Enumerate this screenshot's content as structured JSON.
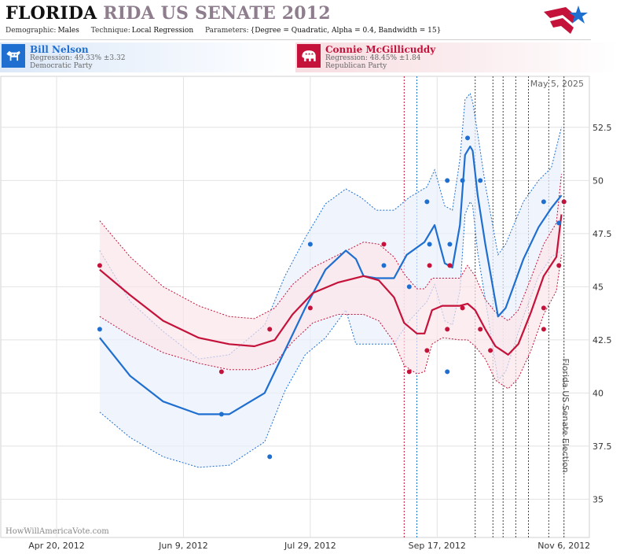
{
  "header": {
    "title_main": "FLORIDA",
    "title_rest": "RIDA US SENATE 2012",
    "demographic_label": "Demographic:",
    "demographic_value": "Males",
    "technique_label": "Technique:",
    "technique_value": "Local Regression",
    "parameters_label": "Parameters:",
    "parameters_value": "{Degree = Quadratic, Alpha = 0.4, Bandwidth = 15}"
  },
  "candidates": {
    "dem": {
      "name": "Bill Nelson",
      "regression": "Regression: 49.33% ±3.32",
      "party": "Democratic Party",
      "icon": "donkey-icon",
      "color": "#1f6fd0"
    },
    "rep": {
      "name": "Connie McGillicuddy",
      "regression": "Regression: 48.45% ±1.84",
      "party": "Republican Party",
      "icon": "elephant-icon",
      "color": "#c4123a"
    }
  },
  "colors": {
    "dem": "#1f6fd0",
    "rep": "#c4123a",
    "dem_band": "#e9f0fb",
    "rep_band": "#fbe6ea"
  },
  "chart_data": {
    "type": "scatter",
    "date_label": "May 5, 2025",
    "watermark": "HowWillAmericaVote.com",
    "event_label": "Florida US Senate Election",
    "event_date": "2012-11-06",
    "x_ticks": [
      "2012-04-20",
      "2012-06-09",
      "2012-07-29",
      "2012-09-17",
      "2012-11-06"
    ],
    "x_tick_labels": [
      "Apr 20, 2012",
      "Jun 9, 2012",
      "Jul 29, 2012",
      "Sep 17, 2012",
      "Nov 6, 2012"
    ],
    "x_range": [
      "2012-03-29",
      "2012-11-16"
    ],
    "y_ticks": [
      35,
      37.5,
      40,
      42.5,
      45,
      47.5,
      50,
      52.5
    ],
    "y_tick_labels": [
      "35",
      "37.5",
      "40",
      "42.5",
      "45",
      "47.5",
      "50",
      "52.5"
    ],
    "ylim": [
      33.2,
      54.9
    ],
    "grid": true,
    "markers": [
      {
        "date": "2012-09-04",
        "color": "rep"
      },
      {
        "date": "2012-09-09",
        "color": "dem"
      },
      {
        "date": "2012-10-02",
        "color": "gray"
      },
      {
        "date": "2012-10-09",
        "color": "gray"
      },
      {
        "date": "2012-10-13",
        "color": "gray"
      },
      {
        "date": "2012-10-18",
        "color": "gray"
      },
      {
        "date": "2012-10-23",
        "color": "gray"
      },
      {
        "date": "2012-10-31",
        "color": "gray"
      }
    ],
    "series": [
      {
        "name": "Bill Nelson",
        "color": "dem",
        "points": [
          [
            "2012-05-07",
            43.0
          ],
          [
            "2012-06-24",
            39.0
          ],
          [
            "2012-07-13",
            37.0
          ],
          [
            "2012-07-29",
            47.0
          ],
          [
            "2012-08-27",
            46.0
          ],
          [
            "2012-09-06",
            45.0
          ],
          [
            "2012-09-13",
            49.0
          ],
          [
            "2012-09-14",
            47.0
          ],
          [
            "2012-09-21",
            50.0
          ],
          [
            "2012-09-21",
            41.0
          ],
          [
            "2012-09-22",
            47.0
          ],
          [
            "2012-09-27",
            50.0
          ],
          [
            "2012-09-29",
            52.0
          ],
          [
            "2012-10-04",
            50.0
          ],
          [
            "2012-10-29",
            49.0
          ],
          [
            "2012-11-04",
            48.0
          ],
          [
            "2012-11-06",
            49.0
          ]
        ],
        "fit": [
          [
            "2012-05-07",
            42.6
          ],
          [
            "2012-05-19",
            40.8
          ],
          [
            "2012-06-01",
            39.6
          ],
          [
            "2012-06-15",
            39.0
          ],
          [
            "2012-06-27",
            39.0
          ],
          [
            "2012-07-11",
            40.0
          ],
          [
            "2012-07-19",
            42.0
          ],
          [
            "2012-07-27",
            44.0
          ],
          [
            "2012-08-04",
            45.8
          ],
          [
            "2012-08-12",
            46.7
          ],
          [
            "2012-08-16",
            46.3
          ],
          [
            "2012-08-19",
            45.5
          ],
          [
            "2012-08-24",
            45.4
          ],
          [
            "2012-08-31",
            45.4
          ],
          [
            "2012-09-05",
            46.5
          ],
          [
            "2012-09-12",
            47.1
          ],
          [
            "2012-09-16",
            47.9
          ],
          [
            "2012-09-18",
            47.0
          ],
          [
            "2012-09-20",
            46.1
          ],
          [
            "2012-09-23",
            45.9
          ],
          [
            "2012-09-26",
            47.9
          ],
          [
            "2012-09-28",
            51.2
          ],
          [
            "2012-09-30",
            51.6
          ],
          [
            "2012-10-01",
            51.4
          ],
          [
            "2012-10-03",
            49.3
          ],
          [
            "2012-10-06",
            47.0
          ],
          [
            "2012-10-11",
            43.6
          ],
          [
            "2012-10-14",
            44.0
          ],
          [
            "2012-10-21",
            46.3
          ],
          [
            "2012-10-27",
            47.8
          ],
          [
            "2012-11-01",
            48.7
          ],
          [
            "2012-11-05",
            49.3
          ]
        ],
        "upper": [
          [
            "2012-05-07",
            46.7
          ],
          [
            "2012-05-19",
            44.3
          ],
          [
            "2012-06-01",
            42.9
          ],
          [
            "2012-06-15",
            41.6
          ],
          [
            "2012-06-27",
            41.8
          ],
          [
            "2012-07-11",
            43.2
          ],
          [
            "2012-07-19",
            45.5
          ],
          [
            "2012-07-27",
            47.3
          ],
          [
            "2012-08-04",
            48.9
          ],
          [
            "2012-08-12",
            49.6
          ],
          [
            "2012-08-18",
            49.2
          ],
          [
            "2012-08-24",
            48.6
          ],
          [
            "2012-08-31",
            48.6
          ],
          [
            "2012-09-06",
            49.2
          ],
          [
            "2012-09-13",
            49.7
          ],
          [
            "2012-09-16",
            50.5
          ],
          [
            "2012-09-20",
            48.8
          ],
          [
            "2012-09-23",
            48.6
          ],
          [
            "2012-09-26",
            51.0
          ],
          [
            "2012-09-28",
            53.8
          ],
          [
            "2012-09-30",
            54.1
          ],
          [
            "2012-10-01",
            53.7
          ],
          [
            "2012-10-03",
            52.2
          ],
          [
            "2012-10-06",
            49.8
          ],
          [
            "2012-10-11",
            46.5
          ],
          [
            "2012-10-14",
            47.0
          ],
          [
            "2012-10-21",
            49.0
          ],
          [
            "2012-10-27",
            50.0
          ],
          [
            "2012-11-01",
            50.6
          ],
          [
            "2012-11-05",
            52.5
          ]
        ],
        "lower": [
          [
            "2012-05-07",
            39.1
          ],
          [
            "2012-05-19",
            37.9
          ],
          [
            "2012-06-01",
            37.0
          ],
          [
            "2012-06-15",
            36.5
          ],
          [
            "2012-06-27",
            36.6
          ],
          [
            "2012-07-11",
            37.7
          ],
          [
            "2012-07-19",
            40.1
          ],
          [
            "2012-07-27",
            41.8
          ],
          [
            "2012-08-04",
            42.6
          ],
          [
            "2012-08-12",
            43.9
          ],
          [
            "2012-08-16",
            42.3
          ],
          [
            "2012-08-24",
            42.3
          ],
          [
            "2012-08-31",
            42.3
          ],
          [
            "2012-09-06",
            43.4
          ],
          [
            "2012-09-13",
            44.3
          ],
          [
            "2012-09-16",
            45.1
          ],
          [
            "2012-09-20",
            43.4
          ],
          [
            "2012-09-23",
            43.2
          ],
          [
            "2012-09-26",
            44.8
          ],
          [
            "2012-09-28",
            48.4
          ],
          [
            "2012-09-30",
            49.0
          ],
          [
            "2012-10-01",
            48.8
          ],
          [
            "2012-10-03",
            46.6
          ],
          [
            "2012-10-06",
            44.4
          ],
          [
            "2012-10-11",
            40.6
          ],
          [
            "2012-10-14",
            41.0
          ],
          [
            "2012-10-21",
            43.6
          ],
          [
            "2012-10-27",
            45.5
          ],
          [
            "2012-11-01",
            46.4
          ],
          [
            "2012-11-05",
            46.7
          ]
        ]
      },
      {
        "name": "Connie McGillicuddy",
        "color": "rep",
        "points": [
          [
            "2012-05-07",
            46.0
          ],
          [
            "2012-06-24",
            41.0
          ],
          [
            "2012-07-13",
            43.0
          ],
          [
            "2012-07-29",
            44.0
          ],
          [
            "2012-08-27",
            47.0
          ],
          [
            "2012-09-06",
            41.0
          ],
          [
            "2012-09-13",
            42.0
          ],
          [
            "2012-09-14",
            46.0
          ],
          [
            "2012-09-21",
            43.0
          ],
          [
            "2012-09-22",
            46.0
          ],
          [
            "2012-09-27",
            44.0
          ],
          [
            "2012-10-04",
            43.0
          ],
          [
            "2012-10-08",
            42.0
          ],
          [
            "2012-10-29",
            44.0
          ],
          [
            "2012-10-29",
            43.0
          ],
          [
            "2012-11-04",
            46.0
          ],
          [
            "2012-11-06",
            49.0
          ]
        ],
        "fit": [
          [
            "2012-05-07",
            45.8
          ],
          [
            "2012-05-19",
            44.6
          ],
          [
            "2012-06-01",
            43.4
          ],
          [
            "2012-06-15",
            42.6
          ],
          [
            "2012-06-27",
            42.3
          ],
          [
            "2012-07-07",
            42.2
          ],
          [
            "2012-07-15",
            42.5
          ],
          [
            "2012-07-22",
            43.7
          ],
          [
            "2012-07-30",
            44.7
          ],
          [
            "2012-08-09",
            45.2
          ],
          [
            "2012-08-19",
            45.5
          ],
          [
            "2012-08-25",
            45.3
          ],
          [
            "2012-08-31",
            44.5
          ],
          [
            "2012-09-04",
            43.3
          ],
          [
            "2012-09-09",
            42.8
          ],
          [
            "2012-09-12",
            42.8
          ],
          [
            "2012-09-15",
            43.9
          ],
          [
            "2012-09-19",
            44.1
          ],
          [
            "2012-09-26",
            44.1
          ],
          [
            "2012-09-29",
            44.2
          ],
          [
            "2012-10-02",
            43.9
          ],
          [
            "2012-10-06",
            43.0
          ],
          [
            "2012-10-10",
            42.2
          ],
          [
            "2012-10-15",
            41.8
          ],
          [
            "2012-10-19",
            42.3
          ],
          [
            "2012-10-24",
            43.8
          ],
          [
            "2012-10-29",
            45.5
          ],
          [
            "2012-11-03",
            46.4
          ],
          [
            "2012-11-05",
            48.4
          ]
        ],
        "upper": [
          [
            "2012-05-07",
            48.1
          ],
          [
            "2012-05-19",
            46.4
          ],
          [
            "2012-06-01",
            45.0
          ],
          [
            "2012-06-15",
            44.1
          ],
          [
            "2012-06-27",
            43.6
          ],
          [
            "2012-07-07",
            43.5
          ],
          [
            "2012-07-15",
            44.0
          ],
          [
            "2012-07-22",
            45.1
          ],
          [
            "2012-07-30",
            45.9
          ],
          [
            "2012-08-09",
            46.5
          ],
          [
            "2012-08-19",
            47.1
          ],
          [
            "2012-08-25",
            47.0
          ],
          [
            "2012-08-31",
            46.4
          ],
          [
            "2012-09-04",
            45.6
          ],
          [
            "2012-09-09",
            44.9
          ],
          [
            "2012-09-12",
            44.9
          ],
          [
            "2012-09-15",
            45.4
          ],
          [
            "2012-09-19",
            45.4
          ],
          [
            "2012-09-26",
            45.4
          ],
          [
            "2012-09-29",
            46.0
          ],
          [
            "2012-10-02",
            45.5
          ],
          [
            "2012-10-06",
            44.4
          ],
          [
            "2012-10-10",
            43.8
          ],
          [
            "2012-10-15",
            43.4
          ],
          [
            "2012-10-19",
            43.9
          ],
          [
            "2012-10-24",
            45.4
          ],
          [
            "2012-10-29",
            47.0
          ],
          [
            "2012-11-03",
            48.0
          ],
          [
            "2012-11-05",
            50.3
          ]
        ],
        "lower": [
          [
            "2012-05-07",
            43.6
          ],
          [
            "2012-05-19",
            42.7
          ],
          [
            "2012-06-01",
            41.9
          ],
          [
            "2012-06-15",
            41.4
          ],
          [
            "2012-06-27",
            41.1
          ],
          [
            "2012-07-07",
            41.1
          ],
          [
            "2012-07-15",
            41.4
          ],
          [
            "2012-07-22",
            42.4
          ],
          [
            "2012-07-30",
            43.3
          ],
          [
            "2012-08-09",
            43.7
          ],
          [
            "2012-08-19",
            43.7
          ],
          [
            "2012-08-25",
            43.4
          ],
          [
            "2012-08-31",
            42.4
          ],
          [
            "2012-09-04",
            41.3
          ],
          [
            "2012-09-09",
            40.9
          ],
          [
            "2012-09-12",
            41.0
          ],
          [
            "2012-09-15",
            42.3
          ],
          [
            "2012-09-19",
            42.6
          ],
          [
            "2012-09-26",
            42.5
          ],
          [
            "2012-09-29",
            42.5
          ],
          [
            "2012-10-02",
            42.2
          ],
          [
            "2012-10-06",
            41.6
          ],
          [
            "2012-10-10",
            40.6
          ],
          [
            "2012-10-15",
            40.2
          ],
          [
            "2012-10-19",
            40.7
          ],
          [
            "2012-10-24",
            42.0
          ],
          [
            "2012-10-29",
            43.7
          ],
          [
            "2012-11-03",
            44.8
          ],
          [
            "2012-11-05",
            46.5
          ]
        ]
      }
    ]
  }
}
